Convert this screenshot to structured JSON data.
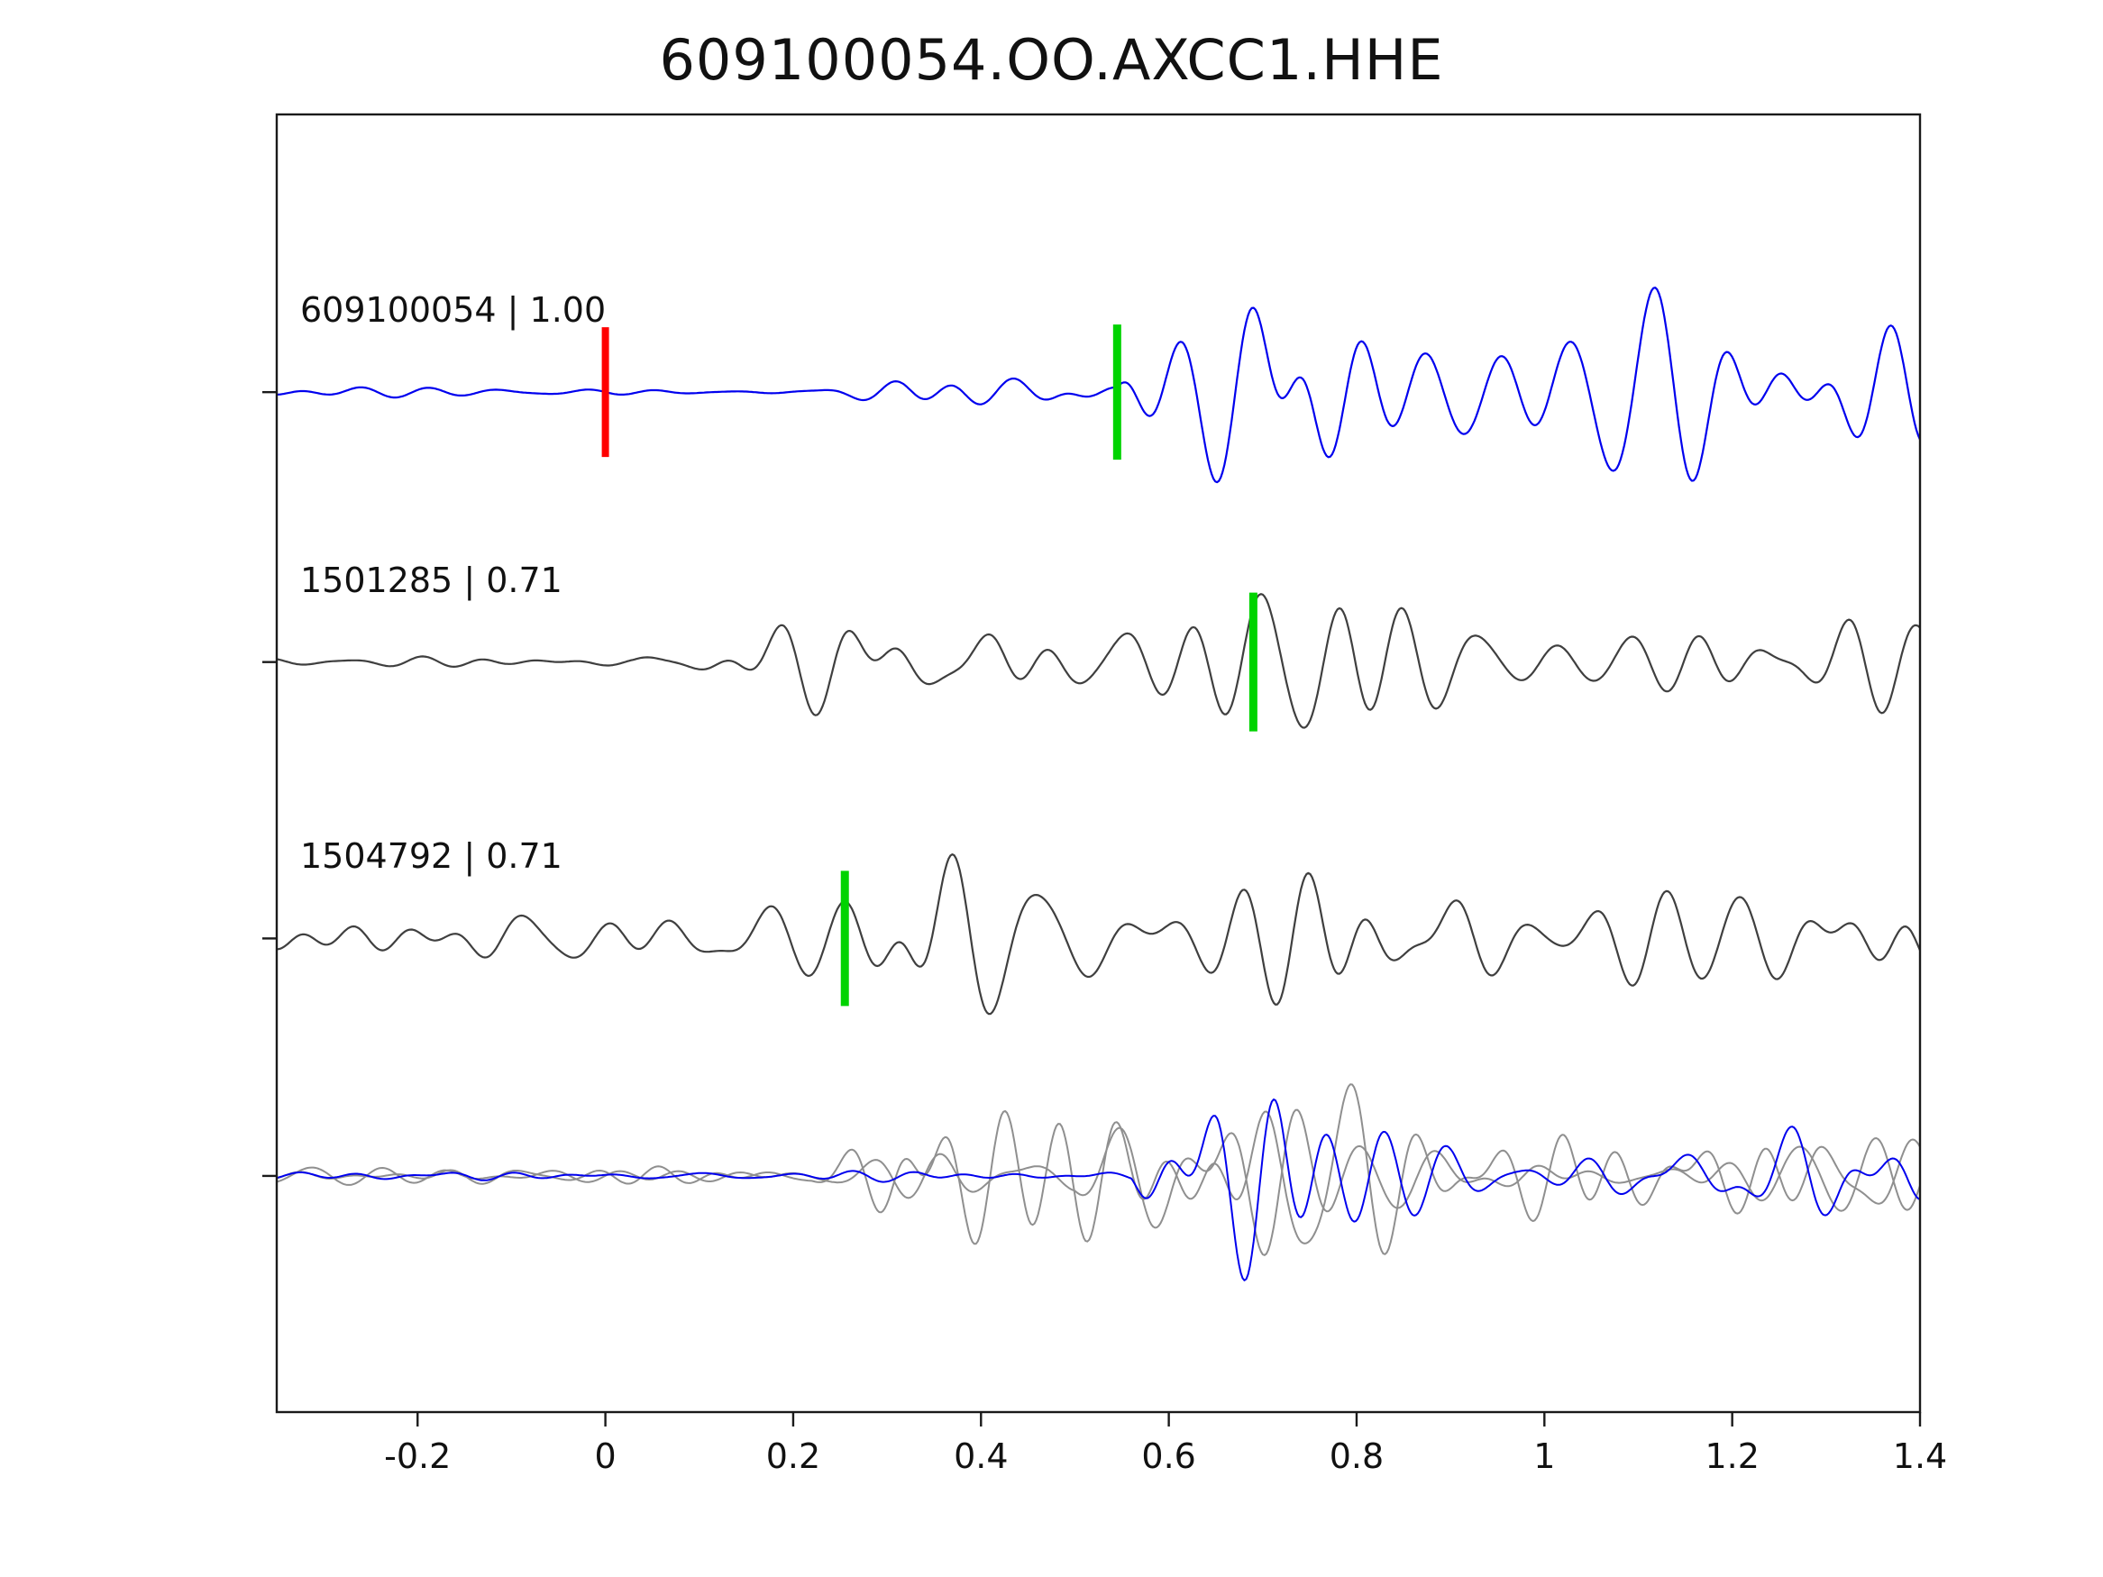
{
  "chart_data": {
    "type": "line",
    "title": "609100054.OO.AXCC1.HHE",
    "xlabel": "",
    "ylabel": "",
    "xlim": [
      -0.35,
      1.4
    ],
    "xticks": [
      -0.2,
      0,
      0.2,
      0.4,
      0.6,
      0.8,
      1,
      1.2,
      1.4
    ],
    "xtick_labels": [
      "-0.2",
      "0",
      "0.2",
      "0.4",
      "0.6",
      "0.8",
      "1",
      "1.2",
      "1.4"
    ],
    "grid": false,
    "legend": "none",
    "colors": {
      "template": "#0000ee",
      "detection": "#3f3f3f",
      "overlay_gray": "#8f8f8f",
      "pick_red": "#ff0000",
      "pick_green": "#00d300",
      "axis": "#1a1a1a"
    },
    "traces": [
      {
        "event_id": "609100054",
        "correlation": "1.00",
        "label": "609100054 | 1.00",
        "color_key": "template",
        "baseline_frac": 0.214,
        "picks": [
          {
            "kind": "origin-marker",
            "x": 0.0,
            "color_key": "pick_red",
            "half_len": 72,
            "width": 8
          },
          {
            "kind": "phase-pick",
            "x": 0.545,
            "color_key": "pick_green",
            "half_len": 75,
            "width": 9
          }
        ],
        "synth": {
          "seed": 11,
          "fmin": 7,
          "fmax": 19,
          "components": 28,
          "envelope": {
            "base": 4,
            "onsets": [
              {
                "x0": 0.545,
                "rise": 0.05,
                "tau": 0.3,
                "amp": 120,
                "sustain": 0.5
              }
            ],
            "gausses": [
              {
                "x": 0.72,
                "sigma": 0.05,
                "amp": 65
              },
              {
                "x": 0.33,
                "sigma": 0.1,
                "amp": 8
              },
              {
                "x": 0.5,
                "sigma": 0.04,
                "amp": 10
              }
            ]
          }
        }
      },
      {
        "event_id": "1501285",
        "correlation": "0.71",
        "label": "1501285 | 0.71",
        "color_key": "detection",
        "baseline_frac": 0.422,
        "picks": [
          {
            "kind": "phase-pick",
            "x": 0.69,
            "color_key": "pick_green",
            "half_len": 77,
            "width": 9
          }
        ],
        "synth": {
          "seed": 23,
          "fmin": 7,
          "fmax": 19,
          "components": 28,
          "envelope": {
            "base": 6,
            "onsets": [
              {
                "x0": 0.03,
                "rise": 0.3,
                "tau": 1.5,
                "amp": 70,
                "sustain": 0.85
              }
            ],
            "gausses": [
              {
                "x": 0.43,
                "sigma": 0.12,
                "amp": 25
              },
              {
                "x": 0.75,
                "sigma": 0.055,
                "amp": 70
              }
            ]
          }
        }
      },
      {
        "event_id": "1504792",
        "correlation": "0.71",
        "label": "1504792 | 0.71",
        "color_key": "detection",
        "baseline_frac": 0.635,
        "picks": [
          {
            "kind": "phase-pick",
            "x": 0.255,
            "color_key": "pick_green",
            "half_len": 75,
            "width": 9
          }
        ],
        "synth": {
          "seed": 37,
          "fmin": 7,
          "fmax": 19,
          "components": 28,
          "envelope": {
            "base": 14,
            "onsets": [
              {
                "x0": -0.35,
                "rise": 0.25,
                "tau": 3.0,
                "amp": 45,
                "sustain": 0.9
              }
            ],
            "gausses": [
              {
                "x": 0.33,
                "sigma": 0.05,
                "amp": 100
              },
              {
                "x": 0.55,
                "sigma": 0.08,
                "amp": 30
              },
              {
                "x": 0.8,
                "sigma": 0.1,
                "amp": 35
              }
            ]
          }
        }
      },
      {
        "event_id": "overlay",
        "correlation": "",
        "label": "",
        "overlay": true,
        "baseline_frac": 0.818,
        "picks": [],
        "series": [
          {
            "color_key": "overlay_gray",
            "synth": {
              "seed": 51,
              "fmin": 7,
              "fmax": 19,
              "components": 28,
              "envelope": {
                "base": 9,
                "onsets": [
                  {
                    "x0": 0.22,
                    "rise": 0.07,
                    "tau": 0.6,
                    "amp": 70,
                    "sustain": 0.55
                  }
                ],
                "gausses": [
                  {
                    "x": 0.31,
                    "sigma": 0.05,
                    "amp": 70
                  },
                  {
                    "x": 0.73,
                    "sigma": 0.07,
                    "amp": 55
                  }
                ]
              }
            }
          },
          {
            "color_key": "overlay_gray",
            "synth": {
              "seed": 67,
              "fmin": 7,
              "fmax": 19,
              "components": 28,
              "envelope": {
                "base": 9,
                "onsets": [
                  {
                    "x0": 0.5,
                    "rise": 0.1,
                    "tau": 0.5,
                    "amp": 80,
                    "sustain": 0.55
                  }
                ],
                "gausses": [
                  {
                    "x": 0.76,
                    "sigma": 0.06,
                    "amp": 55
                  },
                  {
                    "x": 0.35,
                    "sigma": 0.1,
                    "amp": 25
                  }
                ]
              }
            }
          },
          {
            "color_key": "template",
            "synth": {
              "seed": 83,
              "fmin": 7,
              "fmax": 19,
              "components": 28,
              "envelope": {
                "base": 5,
                "onsets": [
                  {
                    "x0": 0.56,
                    "rise": 0.05,
                    "tau": 0.35,
                    "amp": 95,
                    "sustain": 0.45
                  }
                ],
                "gausses": [
                  {
                    "x": 0.7,
                    "sigma": 0.045,
                    "amp": 45
                  }
                ]
              }
            }
          }
        ]
      }
    ]
  }
}
